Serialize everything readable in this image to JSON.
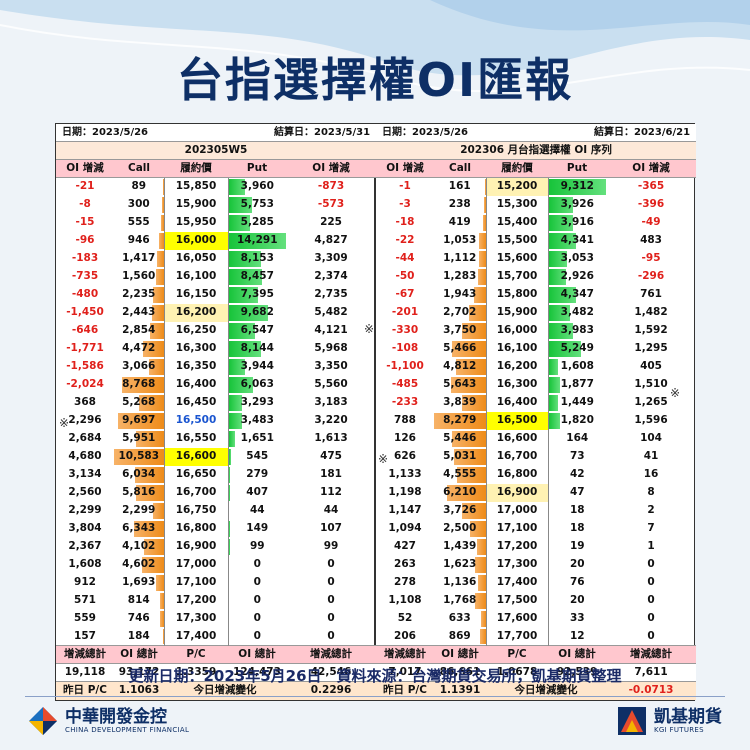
{
  "title": "台指選擇權OI匯報",
  "left": {
    "date": "日期：2023/5/26",
    "settle": "結算日：2023/5/31",
    "contract": "202305W5",
    "headers": [
      "OI 增減",
      "Call",
      "履約價",
      "Put",
      "OI 增減"
    ],
    "rows": [
      [
        "-21",
        "89",
        "15,850",
        "3,960",
        "-873"
      ],
      [
        "-8",
        "300",
        "15,900",
        "5,753",
        "-573"
      ],
      [
        "-15",
        "555",
        "15,950",
        "5,285",
        "225"
      ],
      [
        "-96",
        "946",
        "16,000",
        "14,291",
        "4,827"
      ],
      [
        "-183",
        "1,417",
        "16,050",
        "8,153",
        "3,309"
      ],
      [
        "-735",
        "1,560",
        "16,100",
        "8,457",
        "2,374"
      ],
      [
        "-480",
        "2,235",
        "16,150",
        "7,395",
        "2,735"
      ],
      [
        "-1,450",
        "2,443",
        "16,200",
        "9,682",
        "5,482"
      ],
      [
        "-646",
        "2,854",
        "16,250",
        "6,547",
        "4,121"
      ],
      [
        "-1,771",
        "4,472",
        "16,300",
        "8,144",
        "5,968"
      ],
      [
        "-1,586",
        "3,066",
        "16,350",
        "3,944",
        "3,350"
      ],
      [
        "-2,024",
        "8,768",
        "16,400",
        "6,063",
        "5,560"
      ],
      [
        "368",
        "5,268",
        "16,450",
        "3,293",
        "3,183"
      ],
      [
        "2,296",
        "9,697",
        "16,500",
        "3,483",
        "3,220"
      ],
      [
        "2,684",
        "5,951",
        "16,550",
        "1,651",
        "1,613"
      ],
      [
        "4,680",
        "10,583",
        "16,600",
        "545",
        "475"
      ],
      [
        "3,134",
        "6,034",
        "16,650",
        "279",
        "181"
      ],
      [
        "2,560",
        "5,816",
        "16,700",
        "407",
        "112"
      ],
      [
        "2,299",
        "2,299",
        "16,750",
        "44",
        "44"
      ],
      [
        "3,804",
        "6,343",
        "16,800",
        "149",
        "107"
      ],
      [
        "2,367",
        "4,102",
        "16,900",
        "99",
        "99"
      ],
      [
        "1,608",
        "4,602",
        "17,000",
        "0",
        "0"
      ],
      [
        "912",
        "1,693",
        "17,100",
        "0",
        "0"
      ],
      [
        "571",
        "814",
        "17,200",
        "0",
        "0"
      ],
      [
        "559",
        "746",
        "17,300",
        "0",
        "0"
      ],
      [
        "157",
        "184",
        "17,400",
        "0",
        "0"
      ]
    ],
    "call_fill": [
      0.01,
      0.03,
      0.05,
      0.09,
      0.13,
      0.15,
      0.21,
      0.23,
      0.27,
      0.42,
      0.29,
      0.83,
      0.5,
      0.92,
      0.56,
      1.0,
      0.57,
      0.55,
      0.22,
      0.6,
      0.39,
      0.43,
      0.16,
      0.08,
      0.07,
      0.02
    ],
    "put_fill": [
      0.28,
      0.4,
      0.37,
      1.0,
      0.57,
      0.59,
      0.52,
      0.68,
      0.46,
      0.57,
      0.28,
      0.42,
      0.23,
      0.24,
      0.12,
      0.04,
      0.02,
      0.03,
      0,
      0.01,
      0.01,
      0,
      0,
      0,
      0,
      0
    ],
    "sum_headers": [
      "增減總計",
      "OI 總計",
      "P/C",
      "OI 總計",
      "增減總計"
    ],
    "sums": [
      "19,118",
      "93,172",
      "1.3359",
      "124,473",
      "42,546"
    ],
    "yday_label": "昨日 P/C",
    "yday_value": "1.1063",
    "change_label": "今日增減變化",
    "change_value": "0.2296"
  },
  "right": {
    "date": "日期：2023/5/26",
    "settle": "結算日：2023/6/21",
    "contract": "202306 月台指選擇權 OI 序列",
    "headers": [
      "OI 增減",
      "Call",
      "履約價",
      "Put",
      "OI 增減"
    ],
    "rows": [
      [
        "-1",
        "161",
        "15,200",
        "9,312",
        "-365"
      ],
      [
        "-3",
        "238",
        "15,300",
        "3,926",
        "-396"
      ],
      [
        "-18",
        "419",
        "15,400",
        "3,916",
        "-49"
      ],
      [
        "-22",
        "1,053",
        "15,500",
        "4,341",
        "483"
      ],
      [
        "-44",
        "1,112",
        "15,600",
        "3,053",
        "-95"
      ],
      [
        "-50",
        "1,283",
        "15,700",
        "2,926",
        "-296"
      ],
      [
        "-67",
        "1,943",
        "15,800",
        "4,347",
        "761"
      ],
      [
        "-201",
        "2,702",
        "15,900",
        "3,482",
        "1,482"
      ],
      [
        "-330",
        "3,750",
        "16,000",
        "3,983",
        "1,592"
      ],
      [
        "-108",
        "5,466",
        "16,100",
        "5,249",
        "1,295"
      ],
      [
        "-1,100",
        "4,812",
        "16,200",
        "1,608",
        "405"
      ],
      [
        "-485",
        "5,643",
        "16,300",
        "1,877",
        "1,510"
      ],
      [
        "-233",
        "3,839",
        "16,400",
        "1,449",
        "1,265"
      ],
      [
        "788",
        "8,279",
        "16,500",
        "1,820",
        "1,596"
      ],
      [
        "126",
        "5,446",
        "16,600",
        "164",
        "104"
      ],
      [
        "626",
        "5,031",
        "16,700",
        "73",
        "41"
      ],
      [
        "1,133",
        "4,555",
        "16,800",
        "42",
        "16"
      ],
      [
        "1,198",
        "6,210",
        "16,900",
        "47",
        "8"
      ],
      [
        "1,147",
        "3,726",
        "17,000",
        "18",
        "2"
      ],
      [
        "1,094",
        "2,500",
        "17,100",
        "18",
        "7"
      ],
      [
        "427",
        "1,439",
        "17,200",
        "19",
        "1"
      ],
      [
        "263",
        "1,623",
        "17,300",
        "20",
        "0"
      ],
      [
        "278",
        "1,136",
        "17,400",
        "76",
        "0"
      ],
      [
        "1,108",
        "1,768",
        "17,500",
        "20",
        "0"
      ],
      [
        "52",
        "633",
        "17,600",
        "33",
        "0"
      ],
      [
        "206",
        "869",
        "17,700",
        "12",
        "0"
      ]
    ],
    "call_fill": [
      0.02,
      0.03,
      0.05,
      0.13,
      0.13,
      0.15,
      0.23,
      0.33,
      0.45,
      0.66,
      0.58,
      0.68,
      0.46,
      1.0,
      0.66,
      0.61,
      0.55,
      0.75,
      0.45,
      0.3,
      0.17,
      0.2,
      0.14,
      0.21,
      0.08,
      0.1
    ],
    "put_fill": [
      1.0,
      0.42,
      0.42,
      0.47,
      0.33,
      0.31,
      0.47,
      0.37,
      0.43,
      0.56,
      0.17,
      0.2,
      0.16,
      0.2,
      0,
      0,
      0,
      0,
      0,
      0,
      0,
      0,
      0,
      0,
      0,
      0
    ],
    "sum_headers": [
      "增減總計",
      "OI 總計",
      "P/C",
      "OI 總計",
      "增減總計"
    ],
    "sums": [
      "7,017",
      "86,661",
      "1.0678",
      "92,539",
      "7,611"
    ],
    "yday_label": "昨日 P/C",
    "yday_value": "1.1391",
    "change_label": "今日增減變化",
    "change_value": "-0.0713"
  },
  "marks": {
    "symbol": "※"
  },
  "footer": "更新日期：2023年5月26日　資料來源：台灣期貨交易所，凱基期貨整理",
  "logo_left": {
    "main": "中華開發金控",
    "sub": "CHINA DEVELOPMENT FINANCIAL"
  },
  "logo_right": {
    "main": "凱基期貨",
    "sub": "KGI FUTURES"
  },
  "colors": {
    "title": "#0e2f66",
    "negative": "#e0201b",
    "call_bar": "#ee8b18",
    "put_bar": "#17c43a",
    "highlight": "#ffff00",
    "header_pink": "#ffc7ce"
  }
}
